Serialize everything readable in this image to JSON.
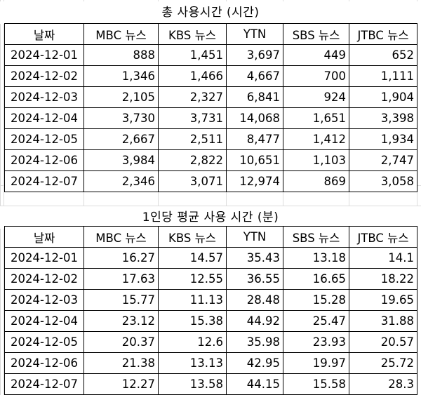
{
  "table1": {
    "title": "총 사용시간 (시간)",
    "headers": [
      "날짜",
      "MBC 뉴스",
      "KBS 뉴스",
      "YTN",
      "SBS 뉴스",
      "JTBC 뉴스"
    ],
    "rows": [
      [
        "2024-12-01",
        "888",
        "1,451",
        "3,697",
        "449",
        "652"
      ],
      [
        "2024-12-02",
        "1,346",
        "1,466",
        "4,667",
        "700",
        "1,111"
      ],
      [
        "2024-12-03",
        "2,105",
        "2,327",
        "6,841",
        "924",
        "1,904"
      ],
      [
        "2024-12-04",
        "3,730",
        "3,731",
        "14,068",
        "1,651",
        "3,398"
      ],
      [
        "2024-12-05",
        "2,667",
        "2,511",
        "8,477",
        "1,412",
        "1,934"
      ],
      [
        "2024-12-06",
        "3,984",
        "2,822",
        "10,651",
        "1,103",
        "2,747"
      ],
      [
        "2024-12-07",
        "2,346",
        "3,071",
        "12,974",
        "869",
        "3,058"
      ]
    ]
  },
  "table2": {
    "title": "1인당 평균 사용 시간 (분)",
    "headers": [
      "날짜",
      "MBC 뉴스",
      "KBS 뉴스",
      "YTN",
      "SBS 뉴스",
      "JTBC 뉴스"
    ],
    "rows": [
      [
        "2024-12-01",
        "16.27",
        "14.57",
        "35.43",
        "13.18",
        "14.1"
      ],
      [
        "2024-12-02",
        "17.63",
        "12.55",
        "36.55",
        "16.65",
        "18.22"
      ],
      [
        "2024-12-03",
        "15.77",
        "11.13",
        "28.48",
        "15.28",
        "19.65"
      ],
      [
        "2024-12-04",
        "23.12",
        "15.38",
        "44.92",
        "25.47",
        "31.88"
      ],
      [
        "2024-12-05",
        "20.37",
        "12.6",
        "35.98",
        "23.93",
        "20.57"
      ],
      [
        "2024-12-06",
        "21.38",
        "13.13",
        "42.95",
        "19.97",
        "25.72"
      ],
      [
        "2024-12-07",
        "12.27",
        "13.58",
        "44.15",
        "15.58",
        "28.3"
      ]
    ]
  }
}
